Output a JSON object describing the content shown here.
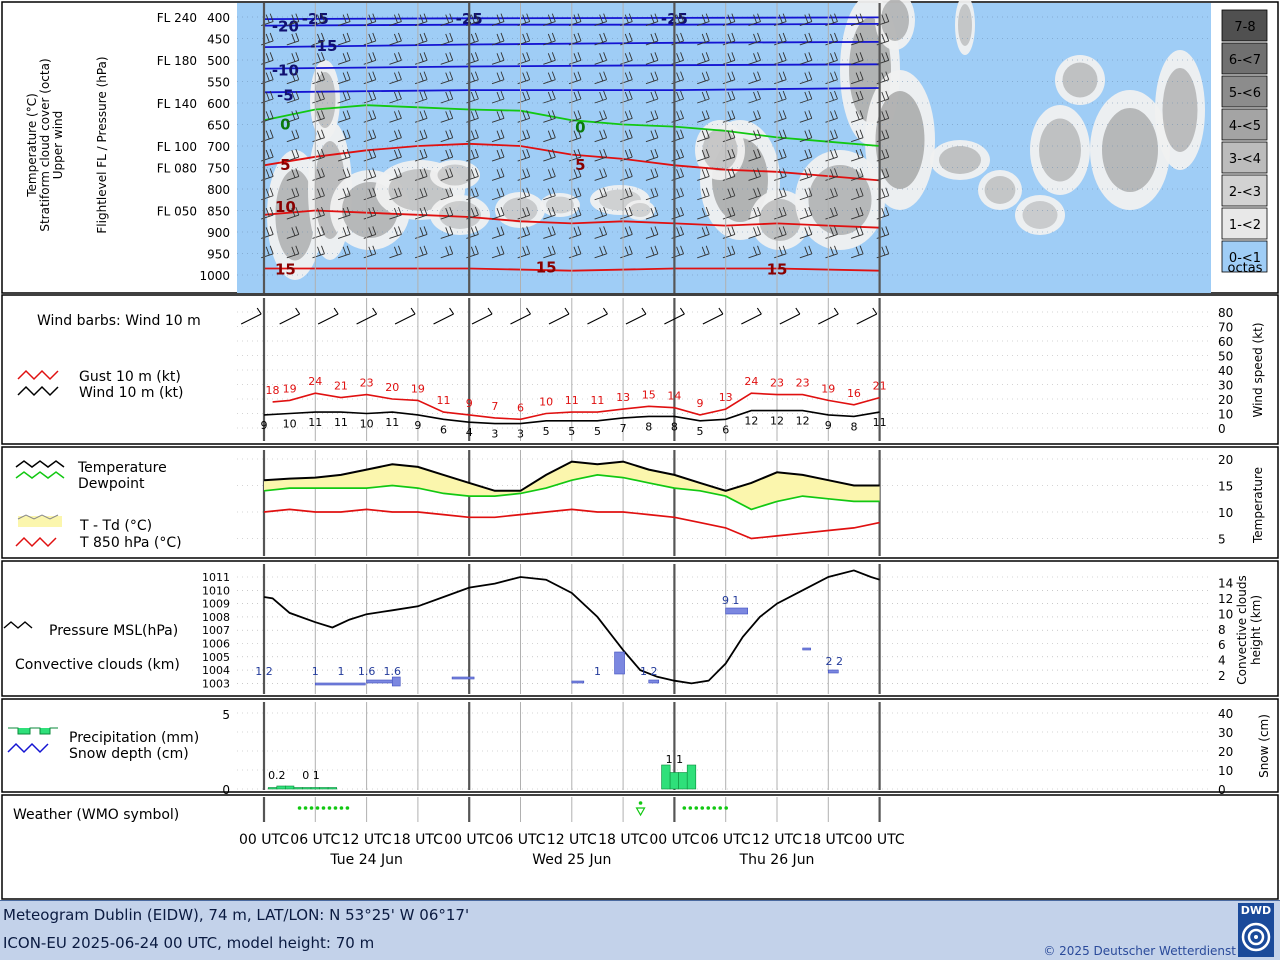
{
  "footer": {
    "line1": "Meteogram Dublin (EIDW), 74 m, LAT/LON: N 53°25' W 06°17'",
    "line2": "ICON-EU 2025-06-24 00 UTC, model height: 70 m",
    "copyright": "© 2025 Deutscher Wetterdienst",
    "logo_text": "DWD"
  },
  "time_axis": {
    "tick_labels": [
      "00 UTC",
      "06 UTC",
      "12 UTC",
      "18 UTC",
      "00 UTC",
      "06 UTC",
      "12 UTC",
      "18 UTC",
      "00 UTC",
      "06 UTC",
      "12 UTC",
      "18 UTC",
      "00 UTC"
    ],
    "day_labels": [
      "Tue 24 Jun",
      "Wed 25 Jun",
      "Thu 26 Jun"
    ],
    "hours_range": [
      0,
      72
    ]
  },
  "colors": {
    "sky": "#9fcdf6",
    "temp_red": "#e01010",
    "freezing_green": "#12c812",
    "cold_blue": "#1414d2",
    "td_fill": "#fbf6ad",
    "precip_green": "#2fe07a",
    "conv_blue": "#7b87e0"
  },
  "chart_data": [
    {
      "type": "heatmap",
      "panel": "upper",
      "ylabel_left": [
        "Temperature (°C)",
        "Stratiform cloud cover (octa)",
        "Upper wind"
      ],
      "ylabel_right": "Flightlevel FL / Pressure (hPa)",
      "pressure_levels": [
        400,
        450,
        500,
        550,
        600,
        650,
        700,
        750,
        800,
        850,
        900,
        950,
        1000
      ],
      "flight_levels": [
        {
          "label": "FL 240",
          "p": 400
        },
        {
          "label": "FL 180",
          "p": 500
        },
        {
          "label": "FL 140",
          "p": 600
        },
        {
          "label": "FL 100",
          "p": 700
        },
        {
          "label": "FL 080",
          "p": 750
        },
        {
          "label": "FL 050",
          "p": 850
        }
      ],
      "cloud_legend": [
        "7-8",
        "6-<7",
        "5-<6",
        "4-<5",
        "3-<4",
        "2-<3",
        "1-<2",
        "0-<1",
        "octas"
      ],
      "isotherms": [
        {
          "label": "-25",
          "color": "#1414d2",
          "points": [
            [
              0,
              405
            ],
            [
              24,
              403
            ],
            [
              48,
              402
            ],
            [
              72,
              401
            ]
          ],
          "labels": [
            [
              6,
              402
            ],
            [
              24,
              402
            ],
            [
              48,
              402
            ]
          ]
        },
        {
          "label": "-20",
          "color": "#1414d2",
          "points": [
            [
              0,
              420
            ],
            [
              24,
              418
            ],
            [
              48,
              418
            ],
            [
              72,
              416
            ]
          ],
          "labels": [
            [
              2.5,
              420
            ]
          ]
        },
        {
          "label": "-15",
          "color": "#1414d2",
          "points": [
            [
              0,
              470
            ],
            [
              24,
              464
            ],
            [
              48,
              460
            ],
            [
              72,
              458
            ]
          ],
          "labels": [
            [
              7,
              465
            ]
          ]
        },
        {
          "label": "-10",
          "color": "#1414d2",
          "points": [
            [
              0,
              520
            ],
            [
              24,
              515
            ],
            [
              48,
              512
            ],
            [
              72,
              510
            ]
          ],
          "labels": [
            [
              2.5,
              522
            ]
          ]
        },
        {
          "label": "-5",
          "color": "#1414d2",
          "points": [
            [
              0,
              575
            ],
            [
              24,
              570
            ],
            [
              48,
              570
            ],
            [
              72,
              565
            ]
          ],
          "labels": [
            [
              2.5,
              580
            ]
          ]
        },
        {
          "label": "0",
          "color": "#12c812",
          "points": [
            [
              0,
              640
            ],
            [
              6,
              615
            ],
            [
              12,
              605
            ],
            [
              18,
              610
            ],
            [
              24,
              615
            ],
            [
              30,
              618
            ],
            [
              36,
              640
            ],
            [
              42,
              650
            ],
            [
              48,
              655
            ],
            [
              54,
              665
            ],
            [
              60,
              680
            ],
            [
              66,
              690
            ],
            [
              72,
              700
            ]
          ],
          "labels": [
            [
              2.5,
              648
            ],
            [
              37,
              655
            ]
          ]
        },
        {
          "label": "5",
          "color": "#e01010",
          "points": [
            [
              0,
              745
            ],
            [
              6,
              725
            ],
            [
              12,
              710
            ],
            [
              18,
              700
            ],
            [
              24,
              695
            ],
            [
              30,
              700
            ],
            [
              36,
              720
            ],
            [
              42,
              730
            ],
            [
              48,
              745
            ],
            [
              54,
              755
            ],
            [
              60,
              760
            ],
            [
              66,
              770
            ],
            [
              72,
              780
            ]
          ],
          "labels": [
            [
              2.5,
              742
            ],
            [
              37,
              742
            ]
          ]
        },
        {
          "label": "10",
          "color": "#e01010",
          "points": [
            [
              0,
              860
            ],
            [
              6,
              850
            ],
            [
              12,
              855
            ],
            [
              18,
              860
            ],
            [
              24,
              865
            ],
            [
              30,
              875
            ],
            [
              36,
              880
            ],
            [
              42,
              875
            ],
            [
              48,
              880
            ],
            [
              54,
              885
            ],
            [
              60,
              880
            ],
            [
              66,
              885
            ],
            [
              72,
              890
            ]
          ],
          "labels": [
            [
              2.5,
              840
            ]
          ]
        },
        {
          "label": "15",
          "color": "#e01010",
          "points": [
            [
              0,
              985
            ],
            [
              12,
              985
            ],
            [
              24,
              985
            ],
            [
              36,
              990
            ],
            [
              48,
              985
            ],
            [
              60,
              985
            ],
            [
              72,
              990
            ]
          ],
          "labels": [
            [
              2.5,
              985
            ],
            [
              33,
              980
            ],
            [
              60,
              985
            ]
          ]
        }
      ]
    },
    {
      "type": "line",
      "panel": "wind",
      "title": "Wind barbs: Wind 10 m",
      "ylabel": "Wind speed (kt)",
      "ylim": [
        0,
        80
      ],
      "series": [
        {
          "name": "Gust 10 m (kt)",
          "color": "#e01010",
          "x": [
            1,
            3,
            6,
            9,
            12,
            15,
            18,
            21,
            24,
            27,
            30,
            33,
            36,
            39,
            42,
            45,
            48,
            51,
            54,
            57,
            60,
            63,
            66,
            69,
            72
          ],
          "values": [
            18,
            19,
            24,
            21,
            23,
            20,
            19,
            11,
            9,
            7,
            6,
            10,
            11,
            11,
            13,
            15,
            14,
            9,
            13,
            24,
            23,
            23,
            19,
            16,
            21
          ]
        },
        {
          "name": "Wind 10 m (kt)",
          "color": "#000000",
          "x": [
            0,
            3,
            6,
            9,
            12,
            15,
            18,
            21,
            24,
            27,
            30,
            33,
            36,
            39,
            42,
            45,
            48,
            51,
            54,
            57,
            60,
            63,
            66,
            69,
            72
          ],
          "values": [
            9,
            10,
            11,
            11,
            10,
            11,
            9,
            6,
            4,
            3,
            3,
            5,
            5,
            5,
            7,
            8,
            8,
            5,
            6,
            12,
            12,
            12,
            9,
            8,
            11
          ]
        }
      ]
    },
    {
      "type": "line",
      "panel": "temperature",
      "ylabel": "Temperature",
      "ylim": [
        2.5,
        21
      ],
      "yticks": [
        5,
        10,
        15,
        20
      ],
      "legend": [
        "Temperature",
        "Dewpoint",
        "T - Td (°C)",
        "T 850 hPa (°C)"
      ],
      "series": [
        {
          "name": "Temperature",
          "x": [
            0,
            3,
            6,
            9,
            12,
            15,
            18,
            21,
            24,
            27,
            30,
            33,
            36,
            39,
            42,
            45,
            48,
            51,
            54,
            57,
            60,
            63,
            66,
            69,
            72
          ],
          "values": [
            16,
            16.3,
            16.5,
            17,
            18,
            19,
            18.5,
            17,
            15.5,
            14,
            14,
            17,
            19.5,
            19,
            19.5,
            18,
            17,
            15.5,
            14,
            15.5,
            17.5,
            17,
            16,
            15,
            15
          ]
        },
        {
          "name": "Dewpoint",
          "x": [
            0,
            3,
            6,
            9,
            12,
            15,
            18,
            21,
            24,
            27,
            30,
            33,
            36,
            39,
            42,
            45,
            48,
            51,
            54,
            57,
            60,
            63,
            66,
            69,
            72
          ],
          "values": [
            14,
            14.5,
            14.5,
            14.5,
            14.5,
            15,
            14.5,
            13.5,
            13,
            13,
            13.5,
            14.5,
            16,
            17,
            16.5,
            15.5,
            14.5,
            14,
            13,
            10.5,
            12,
            13,
            12.5,
            12,
            12
          ]
        },
        {
          "name": "T 850 hPa (°C)",
          "x": [
            0,
            3,
            6,
            9,
            12,
            15,
            18,
            21,
            24,
            27,
            30,
            33,
            36,
            39,
            42,
            45,
            48,
            51,
            54,
            57,
            60,
            63,
            66,
            69,
            72
          ],
          "values": [
            10,
            10.5,
            10,
            10,
            10.5,
            10,
            10,
            9.5,
            9,
            9,
            9.5,
            10,
            10.5,
            10,
            10,
            9.5,
            9,
            8,
            7,
            5,
            5.5,
            6,
            6.5,
            7,
            8
          ]
        }
      ]
    },
    {
      "type": "line",
      "panel": "pressure",
      "legend": [
        "Pressure MSL(hPa)",
        "Convective clouds (km)"
      ],
      "ylabel_right": "Convective clouds height (km)",
      "ylim_pressure": [
        1002.5,
        1011.5
      ],
      "pressure_ticks": [
        1003,
        1004,
        1005,
        1006,
        1007,
        1008,
        1009,
        1010,
        1011
      ],
      "height_ticks": [
        2,
        4,
        6,
        8,
        10,
        12,
        14
      ],
      "series": [
        {
          "name": "Pressure MSL(hPa)",
          "x": [
            0,
            1,
            3,
            6,
            8,
            10,
            12,
            15,
            18,
            21,
            24,
            27,
            30,
            33,
            36,
            39,
            42,
            44,
            46,
            48,
            50,
            52,
            54,
            56,
            58,
            60,
            63,
            66,
            69,
            71,
            72
          ],
          "values": [
            1009.5,
            1009.4,
            1008.3,
            1007.6,
            1007.2,
            1007.8,
            1008.2,
            1008.5,
            1008.8,
            1009.5,
            1010.2,
            1010.5,
            1011,
            1010.8,
            1009.8,
            1008,
            1005.5,
            1004,
            1003.5,
            1003.2,
            1003,
            1003.2,
            1004.5,
            1006.5,
            1008,
            1009,
            1010,
            1011,
            1011.5,
            1011,
            1010.8
          ]
        }
      ],
      "convective_labels": [
        {
          "h": 0,
          "text": "1 2"
        },
        {
          "h": 6,
          "text": "1"
        },
        {
          "h": 9,
          "text": "1"
        },
        {
          "h": 12,
          "text": "1.6"
        },
        {
          "h": 15,
          "text": "1.6"
        },
        {
          "h": 39,
          "text": "1"
        },
        {
          "h": 45,
          "text": "1 2"
        },
        {
          "h": 54,
          "text": "9 1"
        },
        {
          "h": 66,
          "text": "2 2"
        }
      ]
    },
    {
      "type": "bar",
      "panel": "precipitation",
      "legend": [
        "Precipitation (mm)",
        "Snow depth (cm)"
      ],
      "ylabel_right": "Snow (cm)",
      "ylim": [
        0,
        5.3
      ],
      "yticks_left": [
        0,
        5
      ],
      "yticks_right": [
        0,
        10,
        20,
        30,
        40
      ],
      "x": [
        1,
        2,
        3,
        4,
        5,
        6,
        7,
        8,
        47,
        48,
        49,
        50
      ],
      "values": [
        0.1,
        0.2,
        0.2,
        0.1,
        0.1,
        0.1,
        0.1,
        0.1,
        1.6,
        1.1,
        1.1,
        1.6
      ],
      "labels": [
        {
          "h": 1.5,
          "text": "0.2"
        },
        {
          "h": 5.5,
          "text": "0 1"
        },
        {
          "h": 48,
          "text": "1 1"
        }
      ]
    },
    {
      "type": "scatter",
      "panel": "weather",
      "title": "Weather (WMO symbol)",
      "symbols": [
        {
          "from": 1,
          "to": 7,
          "kind": "drizzle"
        },
        {
          "from": 41,
          "to": 41,
          "kind": "shower"
        },
        {
          "from": 46,
          "to": 51,
          "kind": "drizzle"
        }
      ]
    }
  ]
}
